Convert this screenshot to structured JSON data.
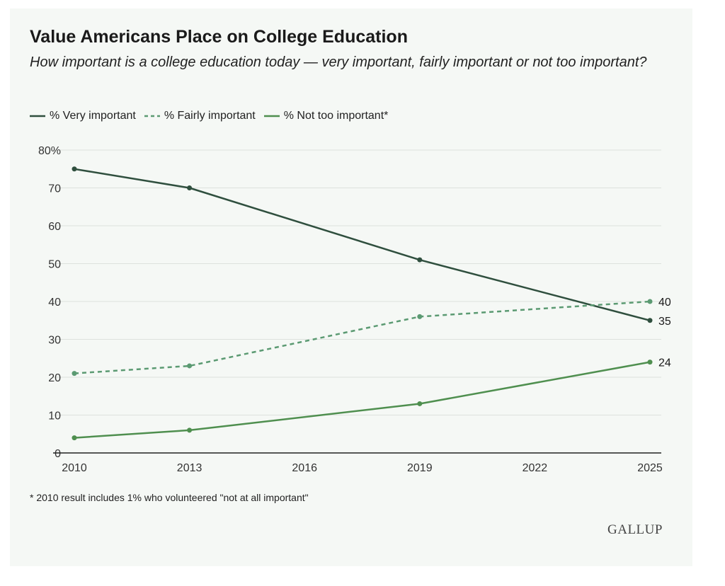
{
  "chart_data": {
    "type": "line",
    "title": "Value Americans Place on College Education",
    "subtitle": "How important is a college education today — very important, fairly important or not too important?",
    "x": [
      2010,
      2013,
      2019,
      2025
    ],
    "x_ticks": [
      "2010",
      "2013",
      "2016",
      "2019",
      "2022",
      "2025"
    ],
    "x_range": [
      2010,
      2025
    ],
    "y_ticks": [
      "80%",
      "70",
      "60",
      "50",
      "40",
      "30",
      "20",
      "10",
      "0"
    ],
    "ylim": [
      0,
      80
    ],
    "grid": true,
    "legend_position": "top-left",
    "series": [
      {
        "name": "% Very important",
        "values": [
          75,
          70,
          51,
          35
        ],
        "color": "#2f4f3e",
        "style": "solid",
        "end_label": "35"
      },
      {
        "name": "% Fairly important",
        "values": [
          21,
          23,
          36,
          40
        ],
        "color": "#5b9a72",
        "style": "dashed",
        "end_label": "40"
      },
      {
        "name": "% Not too important*",
        "values": [
          4,
          6,
          13,
          24
        ],
        "color": "#4f8f4f",
        "style": "solid",
        "end_label": "24"
      }
    ],
    "footnote": "* 2010 result includes 1% who volunteered \"not at all important\"",
    "source": "GALLUP"
  }
}
